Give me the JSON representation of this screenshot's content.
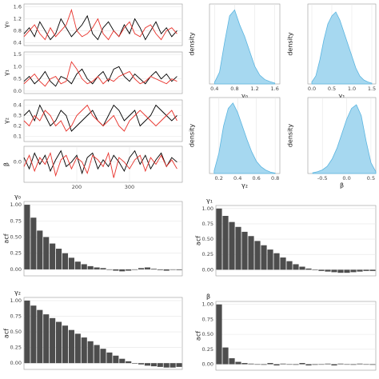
{
  "chart_data": [
    {
      "type": "line",
      "y_label": "γ₀",
      "xlim": [
        100,
        400
      ],
      "ylim": [
        0.3,
        1.7
      ],
      "yticks": [
        0.4,
        0.8,
        1.2,
        1.6
      ],
      "x": [
        100,
        110,
        120,
        130,
        140,
        150,
        160,
        170,
        180,
        190,
        200,
        210,
        220,
        230,
        240,
        250,
        260,
        270,
        280,
        290,
        300,
        310,
        320,
        330,
        340,
        350,
        360,
        370,
        380,
        390
      ],
      "series": [
        {
          "color": "#000000",
          "values": [
            0.7,
            0.9,
            0.6,
            1.1,
            0.8,
            0.5,
            0.7,
            1.2,
            0.9,
            0.6,
            0.8,
            1.0,
            1.3,
            0.7,
            0.5,
            0.9,
            1.1,
            0.8,
            0.6,
            1.0,
            0.7,
            1.2,
            0.9,
            0.5,
            0.8,
            1.1,
            0.7,
            0.9,
            0.6,
            0.8
          ]
        },
        {
          "color": "#e8312a",
          "values": [
            0.6,
            0.8,
            1.0,
            0.7,
            0.5,
            0.9,
            0.6,
            0.8,
            1.0,
            1.5,
            0.8,
            0.6,
            0.7,
            0.9,
            1.2,
            0.7,
            0.5,
            0.8,
            0.6,
            0.9,
            1.1,
            0.7,
            0.6,
            0.9,
            1.0,
            0.7,
            0.5,
            0.8,
            0.9,
            0.7
          ]
        }
      ]
    },
    {
      "type": "line",
      "y_label": "γ₁",
      "xlim": [
        100,
        400
      ],
      "ylim": [
        -0.1,
        1.6
      ],
      "yticks": [
        {
          "value": 0,
          "label": "0.0"
        },
        0.5,
        {
          "value": 1,
          "label": "1.0"
        },
        1.5
      ],
      "x": [
        100,
        110,
        120,
        130,
        140,
        150,
        160,
        170,
        180,
        190,
        200,
        210,
        220,
        230,
        240,
        250,
        260,
        270,
        280,
        290,
        300,
        310,
        320,
        330,
        340,
        350,
        360,
        370,
        380,
        390
      ],
      "series": [
        {
          "color": "#000000",
          "values": [
            0.4,
            0.6,
            0.3,
            0.5,
            0.8,
            0.4,
            0.2,
            0.6,
            0.5,
            0.3,
            0.7,
            0.9,
            0.5,
            0.3,
            0.6,
            0.8,
            0.4,
            0.9,
            1.0,
            0.6,
            0.4,
            0.7,
            0.5,
            0.3,
            0.6,
            0.8,
            0.5,
            0.7,
            0.4,
            0.6
          ]
        },
        {
          "color": "#e8312a",
          "values": [
            0.3,
            0.5,
            0.7,
            0.4,
            0.2,
            0.5,
            0.6,
            0.3,
            0.4,
            1.2,
            0.9,
            0.5,
            0.3,
            0.4,
            0.6,
            0.3,
            0.5,
            0.4,
            0.6,
            0.7,
            0.8,
            0.5,
            0.3,
            0.4,
            0.6,
            0.5,
            0.4,
            0.3,
            0.5,
            0.4
          ]
        }
      ]
    },
    {
      "type": "line",
      "y_label": "γ₂",
      "xlim": [
        100,
        400
      ],
      "ylim": [
        0.05,
        0.45
      ],
      "yticks": [
        0.1,
        0.2,
        0.3,
        0.4
      ],
      "x": [
        100,
        110,
        120,
        130,
        140,
        150,
        160,
        170,
        180,
        190,
        200,
        210,
        220,
        230,
        240,
        250,
        260,
        270,
        280,
        290,
        300,
        310,
        320,
        330,
        340,
        350,
        360,
        370,
        380,
        390
      ],
      "series": [
        {
          "color": "#000000",
          "values": [
            0.3,
            0.35,
            0.25,
            0.4,
            0.3,
            0.2,
            0.25,
            0.35,
            0.3,
            0.15,
            0.2,
            0.25,
            0.3,
            0.35,
            0.25,
            0.2,
            0.3,
            0.4,
            0.35,
            0.25,
            0.3,
            0.35,
            0.2,
            0.25,
            0.3,
            0.4,
            0.35,
            0.3,
            0.25,
            0.3
          ]
        },
        {
          "color": "#e8312a",
          "values": [
            0.25,
            0.2,
            0.3,
            0.25,
            0.35,
            0.3,
            0.2,
            0.25,
            0.15,
            0.2,
            0.3,
            0.35,
            0.4,
            0.3,
            0.25,
            0.2,
            0.25,
            0.3,
            0.2,
            0.15,
            0.25,
            0.3,
            0.35,
            0.3,
            0.25,
            0.2,
            0.25,
            0.3,
            0.35,
            0.25
          ]
        }
      ]
    },
    {
      "type": "line",
      "y_label": "β",
      "xlim": [
        100,
        400
      ],
      "xticks": [
        200,
        300
      ],
      "ylim": [
        -0.9,
        0.7
      ],
      "yticks": [
        {
          "value": 0,
          "label": "0.0"
        }
      ],
      "x": [
        100,
        110,
        120,
        130,
        140,
        150,
        160,
        170,
        180,
        190,
        200,
        210,
        220,
        230,
        240,
        250,
        260,
        270,
        280,
        290,
        300,
        310,
        320,
        330,
        340,
        350,
        360,
        370,
        380,
        390
      ],
      "series": [
        {
          "color": "#000000",
          "values": [
            0.2,
            -0.3,
            0.4,
            -0.1,
            0.3,
            -0.4,
            0.1,
            0.5,
            -0.2,
            0.0,
            0.3,
            -0.5,
            0.2,
            0.4,
            -0.3,
            0.1,
            -0.2,
            0.3,
            0.0,
            -0.4,
            0.2,
            0.5,
            -0.1,
            0.3,
            -0.3,
            0.1,
            0.4,
            -0.2,
            0.2,
            0.0
          ]
        },
        {
          "color": "#e8312a",
          "values": [
            -0.2,
            0.3,
            -0.4,
            0.2,
            -0.1,
            0.4,
            -0.6,
            0.1,
            0.3,
            -0.3,
            0.2,
            0.0,
            -0.5,
            0.3,
            0.1,
            -0.2,
            0.4,
            -0.7,
            0.2,
            0.0,
            -0.3,
            0.1,
            0.3,
            -0.4,
            0.2,
            -0.1,
            0.3,
            -0.2,
            0.1,
            -0.3
          ]
        }
      ]
    },
    {
      "type": "area",
      "x_label": "γ₀",
      "y_label": "density",
      "color": "#a6d8f0",
      "line_color": "#5bb5e0",
      "xlim": [
        0.3,
        1.7
      ],
      "xticks": [
        0.4,
        0.8,
        1.2,
        1.6
      ],
      "ylim": [
        0,
        2.7
      ],
      "x": [
        0.4,
        0.5,
        0.6,
        0.7,
        0.8,
        0.9,
        1.0,
        1.1,
        1.2,
        1.3,
        1.4,
        1.5,
        1.6
      ],
      "values": [
        0.05,
        0.4,
        1.4,
        2.3,
        2.5,
        2.0,
        1.6,
        1.1,
        0.6,
        0.3,
        0.15,
        0.08,
        0.03
      ]
    },
    {
      "type": "area",
      "x_label": "γ₁",
      "y_label": "density",
      "color": "#a6d8f0",
      "line_color": "#5bb5e0",
      "xlim": [
        -0.1,
        1.6
      ],
      "xticks": [
        {
          "value": 0,
          "label": "0.0"
        },
        0.5,
        {
          "value": 1,
          "label": "1.0"
        },
        1.5
      ],
      "ylim": [
        0,
        2
      ],
      "x": [
        0,
        0.1,
        0.2,
        0.3,
        0.4,
        0.5,
        0.6,
        0.7,
        0.8,
        0.9,
        1.0,
        1.1,
        1.2,
        1.3,
        1.4,
        1.5
      ],
      "values": [
        0.05,
        0.2,
        0.6,
        1.1,
        1.5,
        1.7,
        1.8,
        1.6,
        1.3,
        1.0,
        0.7,
        0.4,
        0.2,
        0.1,
        0.05,
        0.02
      ]
    },
    {
      "type": "area",
      "x_label": "γ₂",
      "y_label": "density",
      "color": "#a6d8f0",
      "line_color": "#5bb5e0",
      "xlim": [
        0.1,
        0.85
      ],
      "xticks": [
        0.2,
        0.4,
        0.6,
        0.8
      ],
      "ylim": [
        0,
        5.6
      ],
      "x": [
        0.15,
        0.2,
        0.25,
        0.3,
        0.35,
        0.4,
        0.45,
        0.5,
        0.55,
        0.6,
        0.65,
        0.7,
        0.75,
        0.8
      ],
      "values": [
        0.2,
        1.5,
        3.5,
        4.8,
        5.2,
        4.5,
        3.5,
        2.5,
        1.6,
        0.9,
        0.5,
        0.25,
        0.1,
        0.03
      ]
    },
    {
      "type": "area",
      "x_label": "β",
      "y_label": "density",
      "color": "#a6d8f0",
      "line_color": "#5bb5e0",
      "xlim": [
        -0.8,
        0.6
      ],
      "xticks": [
        -0.5,
        {
          "value": 0,
          "label": "0.0"
        },
        0.5
      ],
      "ylim": [
        0,
        2.1
      ],
      "x": [
        -0.7,
        -0.6,
        -0.5,
        -0.4,
        -0.3,
        -0.2,
        -0.1,
        0,
        0.1,
        0.2,
        0.3,
        0.4,
        0.5,
        0.6
      ],
      "values": [
        0.02,
        0.05,
        0.1,
        0.2,
        0.4,
        0.7,
        1.1,
        1.5,
        1.8,
        1.9,
        1.6,
        0.9,
        0.3,
        0.05
      ]
    },
    {
      "type": "bar",
      "title": "γ₀",
      "y_label": "acf",
      "color": "#4d4d4d",
      "ylim": [
        -0.1,
        1.05
      ],
      "yticks": [
        {
          "value": 0,
          "label": "0.00"
        },
        0.25,
        {
          "value": 0.5,
          "label": "0.50"
        },
        0.75,
        {
          "value": 1,
          "label": "1.00"
        }
      ],
      "values": [
        1,
        0.8,
        0.6,
        0.5,
        0.4,
        0.32,
        0.25,
        0.18,
        0.12,
        0.08,
        0.05,
        0.03,
        0.02,
        0.0,
        -0.02,
        -0.03,
        -0.02,
        0.0,
        0.02,
        0.03,
        0.01,
        -0.01,
        -0.02,
        0.0,
        -0.01
      ]
    },
    {
      "type": "bar",
      "title": "γ₁",
      "y_label": "acf",
      "color": "#4d4d4d",
      "ylim": [
        -0.1,
        1.05
      ],
      "yticks": [
        {
          "value": 0,
          "label": "0.00"
        },
        0.25,
        {
          "value": 0.5,
          "label": "0.50"
        },
        0.75,
        {
          "value": 1,
          "label": "1.00"
        }
      ],
      "values": [
        1,
        0.88,
        0.78,
        0.7,
        0.62,
        0.55,
        0.47,
        0.4,
        0.33,
        0.27,
        0.2,
        0.14,
        0.09,
        0.05,
        0.02,
        0.0,
        -0.02,
        -0.03,
        -0.04,
        -0.05,
        -0.05,
        -0.04,
        -0.03,
        -0.02,
        -0.02
      ]
    },
    {
      "type": "bar",
      "title": "γ₂",
      "y_label": "acf",
      "color": "#4d4d4d",
      "ylim": [
        -0.1,
        1.05
      ],
      "yticks": [
        {
          "value": 0,
          "label": "0.00"
        },
        0.25,
        {
          "value": 0.5,
          "label": "0.50"
        },
        0.75,
        {
          "value": 1,
          "label": "1.00"
        }
      ],
      "values": [
        1,
        0.92,
        0.85,
        0.78,
        0.72,
        0.66,
        0.6,
        0.53,
        0.47,
        0.41,
        0.35,
        0.29,
        0.23,
        0.17,
        0.12,
        0.07,
        0.03,
        0.0,
        -0.02,
        -0.04,
        -0.05,
        -0.06,
        -0.07,
        -0.07,
        -0.06
      ]
    },
    {
      "type": "bar",
      "title": "β",
      "y_label": "acf",
      "color": "#4d4d4d",
      "ylim": [
        -0.1,
        1.05
      ],
      "yticks": [
        {
          "value": 0,
          "label": "0.00"
        },
        0.25,
        {
          "value": 0.5,
          "label": "0.50"
        },
        0.75,
        {
          "value": 1,
          "label": "1.00"
        }
      ],
      "values": [
        1,
        0.28,
        0.1,
        0.04,
        0.02,
        0.01,
        0.0,
        -0.01,
        0.02,
        -0.02,
        0.01,
        0.0,
        -0.01,
        0.02,
        -0.02,
        -0.01,
        0.0,
        0.01,
        -0.02,
        0.01,
        0.0,
        -0.01,
        0.01,
        0.0,
        -0.01
      ]
    }
  ]
}
